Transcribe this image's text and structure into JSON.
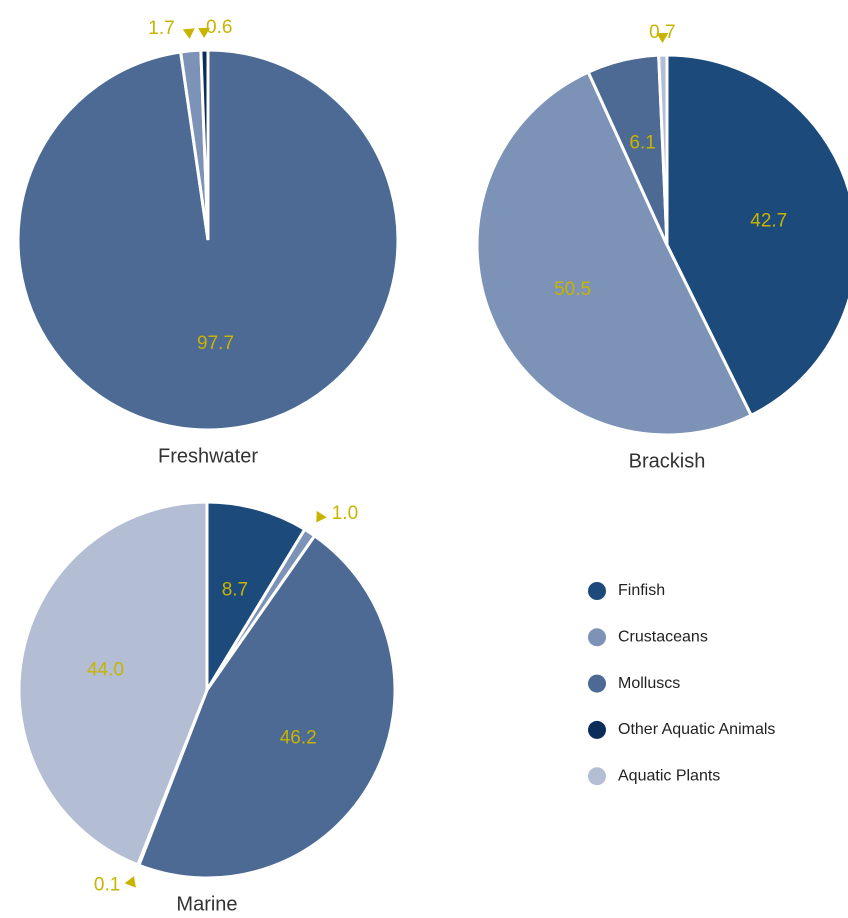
{
  "chart_data": [
    {
      "type": "pie",
      "title": "Freshwater",
      "values": [
        97.7,
        1.7,
        0.6
      ],
      "value_labels": [
        "97.7",
        "1.7",
        "0.6"
      ],
      "colors": [
        "#4c6a93",
        "#7d92b7",
        "#0b2d5a"
      ]
    },
    {
      "type": "pie",
      "title": "Brackish",
      "values": [
        42.7,
        50.5,
        6.1,
        0.7
      ],
      "value_labels": [
        "42.7",
        "50.5",
        "6.1",
        "0.7"
      ],
      "colors": [
        "#1c4a7a",
        "#7d92b7",
        "#4c6a93",
        "#b3bdd4"
      ]
    },
    {
      "type": "pie",
      "title": "Marine",
      "values": [
        8.7,
        1.0,
        46.2,
        0.1,
        44.0
      ],
      "value_labels": [
        "8.7",
        "1.0",
        "46.2",
        "0.1",
        "44.0"
      ],
      "colors": [
        "#1c4a7a",
        "#7d92b7",
        "#4c6a93",
        "#0b2d5a",
        "#b3bdd4"
      ]
    }
  ],
  "legend": {
    "items": [
      {
        "name": "Finfish",
        "color": "#1c4a7a"
      },
      {
        "name": "Crustaceans",
        "color": "#7d92b7"
      },
      {
        "name": "Molluscs",
        "color": "#4c6a93"
      },
      {
        "name": "Other Aquatic Animals",
        "color": "#0b2d5a"
      },
      {
        "name": "Aquatic Plants",
        "color": "#b3bdd4"
      }
    ]
  }
}
